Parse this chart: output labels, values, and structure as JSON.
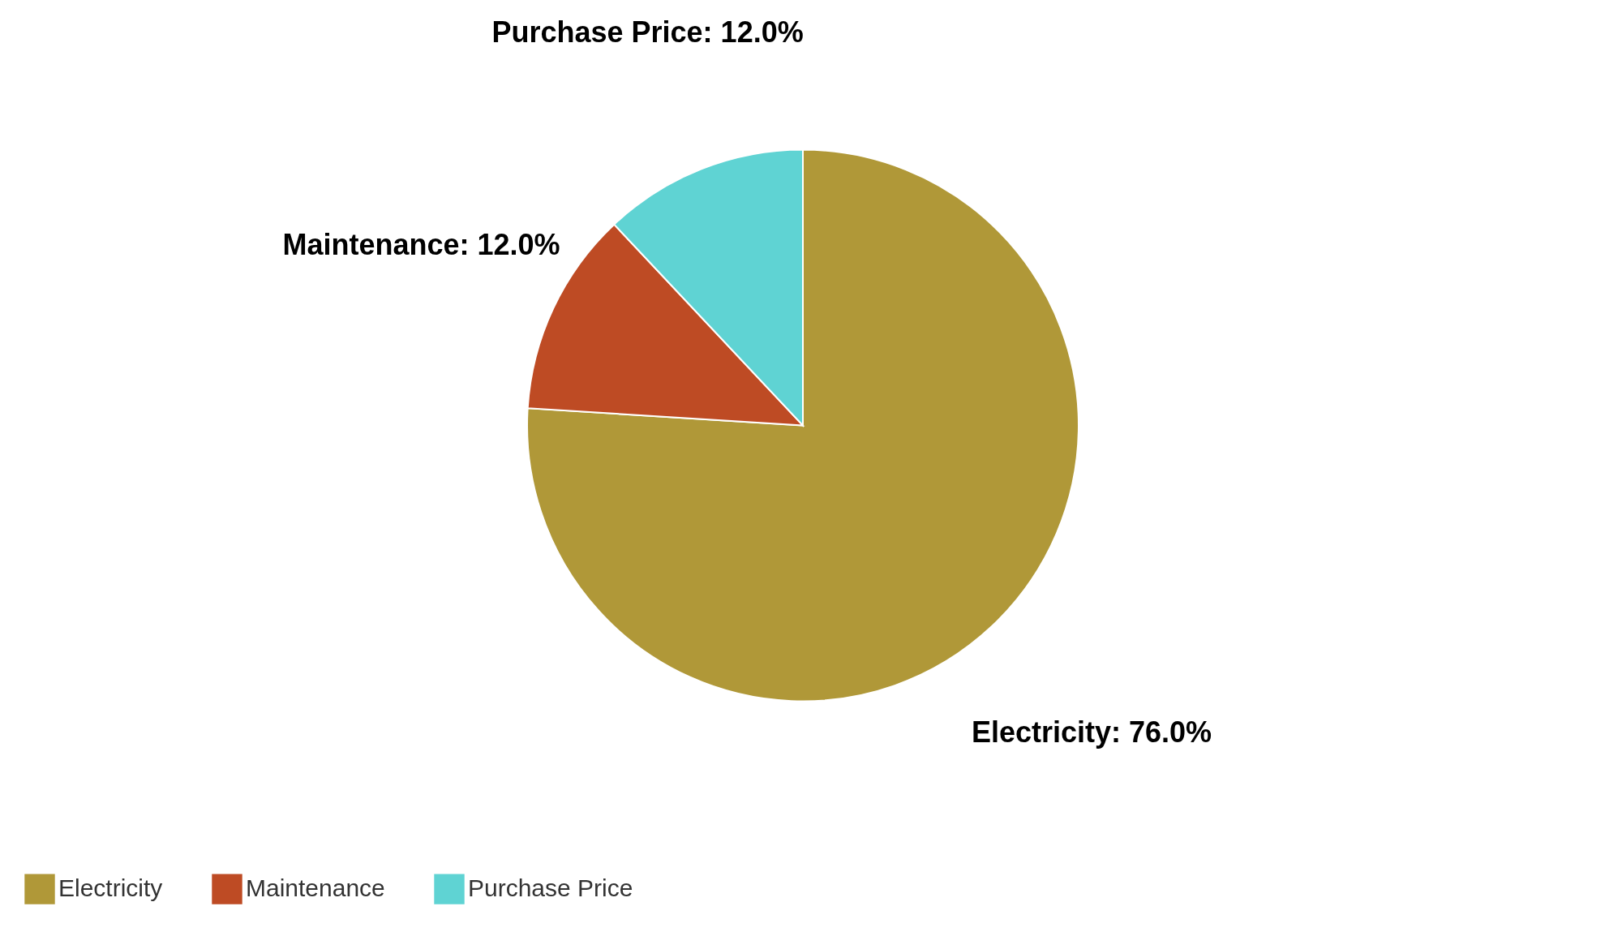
{
  "chart_data": {
    "type": "pie",
    "categories": [
      "Electricity",
      "Maintenance",
      "Purchase Price"
    ],
    "values": [
      76,
      12,
      12
    ],
    "colors": [
      "#b09838",
      "#be4b24",
      "#5fd3d3"
    ],
    "value_labels": [
      "Electricity: 76.0%",
      "Maintenance: 12.0%",
      "Purchase Price: 12.0%"
    ],
    "legend": "bottom"
  }
}
